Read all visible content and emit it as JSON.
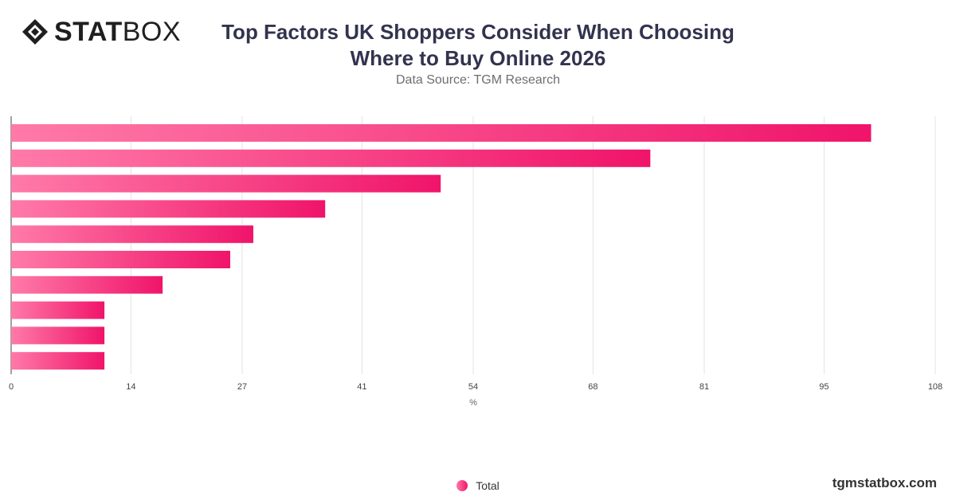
{
  "logo": {
    "text_bold": "STAT",
    "text_light": "BOX",
    "icon": "diamond-logo-icon"
  },
  "chart_data": {
    "type": "bar",
    "orientation": "horizontal",
    "title": "Top Factors UK Shoppers Consider When Choosing Where to Buy Online 2026",
    "subtitle": "Data Source: TGM Research",
    "xlabel": "%",
    "xlim": [
      0,
      108
    ],
    "xticks": [
      0,
      14,
      27,
      41,
      54,
      68,
      81,
      95,
      108
    ],
    "grid": true,
    "series": [
      {
        "name": "Total",
        "values": [
          100.5,
          74.7,
          50.2,
          36.7,
          28.3,
          25.6,
          17.7,
          10.9,
          10.9,
          10.9
        ]
      }
    ],
    "legend_position": "bottom-center",
    "colors": {
      "bar_start": "#ff7aa8",
      "bar_end": "#f0146a",
      "grid": "#e3e3e3",
      "axis": "#444444"
    }
  },
  "footer": {
    "site": "tgmstatbox.com"
  }
}
